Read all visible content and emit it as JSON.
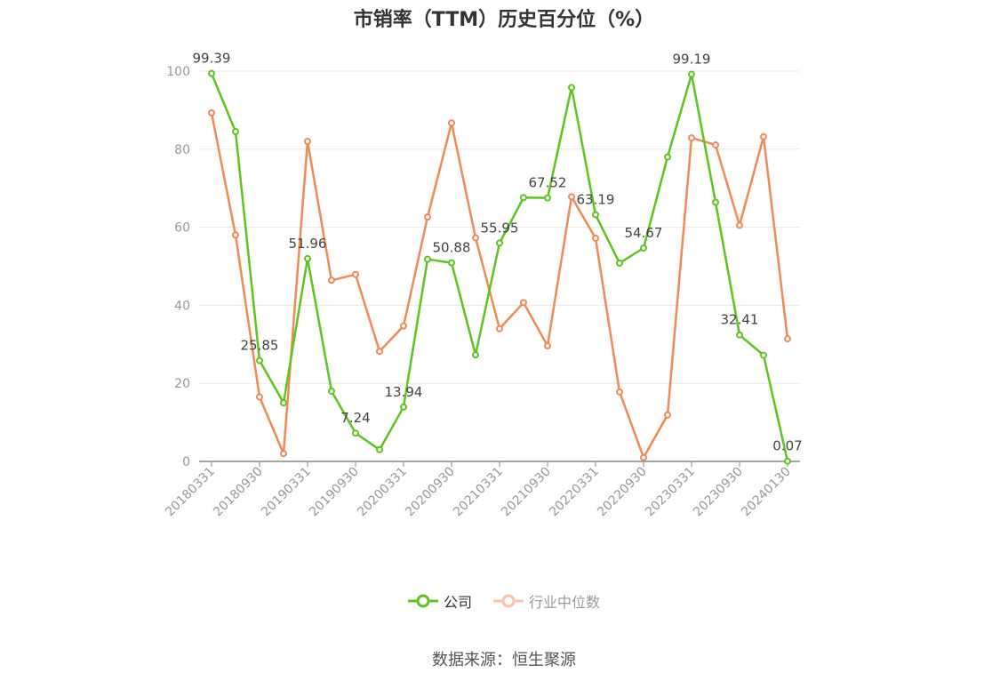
{
  "title": "市销率（TTM）历史百分位（%）",
  "source": "数据来源：恒生聚源",
  "colors": {
    "company": "#5cc61e",
    "industry": "#f08a56",
    "grid": "#e6e8ef",
    "axis": "#999999",
    "text": "#666666"
  },
  "chart_data": {
    "type": "line",
    "title": "市销率（TTM）历史百分位（%）",
    "xlabel": "",
    "ylabel": "",
    "ylim": [
      0,
      100
    ],
    "yticks": [
      0,
      20,
      40,
      60,
      80,
      100
    ],
    "grid": true,
    "legend_position": "bottom",
    "categories": [
      "20180331",
      "20180630",
      "20180930",
      "20181231",
      "20190331",
      "20190630",
      "20190930",
      "20191231",
      "20200331",
      "20200630",
      "20200930",
      "20201231",
      "20210331",
      "20210630",
      "20210930",
      "20211231",
      "20220331",
      "20220630",
      "20220930",
      "20221231",
      "20230331",
      "20230630",
      "20230930",
      "20231231",
      "20240130"
    ],
    "xticks_shown": [
      "20180331",
      "20180930",
      "20190331",
      "20190930",
      "20200331",
      "20200930",
      "20210331",
      "20210930",
      "20220331",
      "20220930",
      "20230331",
      "20230930",
      "20240130"
    ],
    "series": [
      {
        "name": "公司",
        "values": [
          99.39,
          84.5,
          25.85,
          15.0,
          51.96,
          18.0,
          7.24,
          3.0,
          13.94,
          51.8,
          50.88,
          27.3,
          55.95,
          67.6,
          67.52,
          95.8,
          63.19,
          50.8,
          54.67,
          78.0,
          99.19,
          66.4,
          32.41,
          27.2,
          0.07
        ],
        "labels": {
          "0": "99.39",
          "2": "25.85",
          "4": "51.96",
          "6": "7.24",
          "8": "13.94",
          "10": "50.88",
          "12": "55.95",
          "14": "67.52",
          "16": "63.19",
          "18": "54.67",
          "20": "99.19",
          "22": "32.41",
          "24": "0.07"
        }
      },
      {
        "name": "行业中位数",
        "values": [
          89.3,
          58.0,
          16.5,
          2.0,
          82.0,
          46.4,
          47.9,
          28.2,
          34.7,
          62.6,
          86.7,
          57.3,
          34.0,
          40.7,
          29.6,
          67.8,
          57.2,
          17.8,
          1.0,
          11.9,
          82.9,
          81.1,
          60.5,
          83.2,
          31.4
        ]
      }
    ]
  }
}
